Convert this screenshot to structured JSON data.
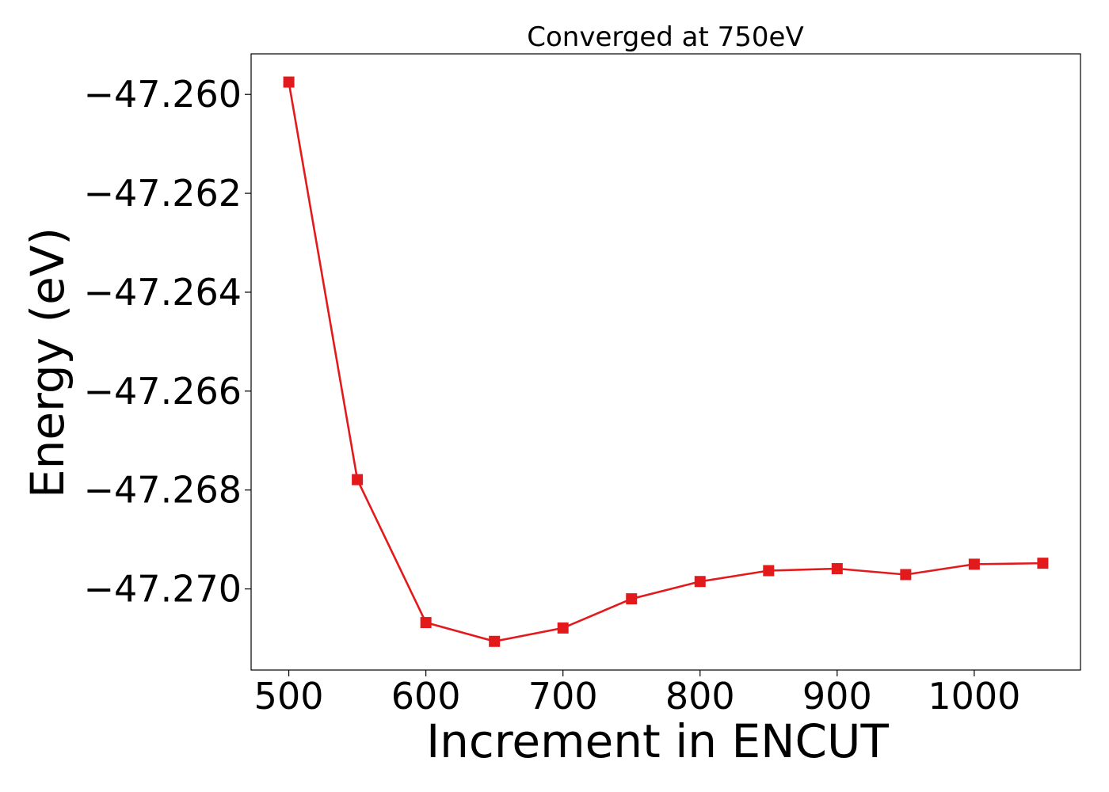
{
  "chart_data": {
    "type": "line",
    "title": "Converged at 750eV",
    "xlabel": "Increment in ENCUT",
    "ylabel": "Energy (eV)",
    "xlim": [
      472.5,
      1077.5
    ],
    "ylim": [
      -47.27164,
      -47.25918
    ],
    "xticks": [
      500,
      600,
      700,
      800,
      900,
      1000
    ],
    "xtick_labels": [
      "500",
      "600",
      "700",
      "800",
      "900",
      "1000"
    ],
    "yticks": [
      -47.26,
      -47.262,
      -47.264,
      -47.266,
      -47.268,
      -47.27
    ],
    "ytick_labels": [
      "−47.260",
      "−47.262",
      "−47.264",
      "−47.266",
      "−47.268",
      "−47.270"
    ],
    "grid": false,
    "series": [
      {
        "color": "#e31a1c",
        "marker": "square",
        "x": [
          500,
          550,
          600,
          650,
          700,
          750,
          800,
          850,
          900,
          950,
          1000,
          1050
        ],
        "y": [
          -47.25975,
          -47.26779,
          -47.27068,
          -47.27106,
          -47.27079,
          -47.2702,
          -47.26985,
          -47.26963,
          -47.26959,
          -47.26971,
          -47.2695,
          -47.26948
        ]
      }
    ]
  }
}
